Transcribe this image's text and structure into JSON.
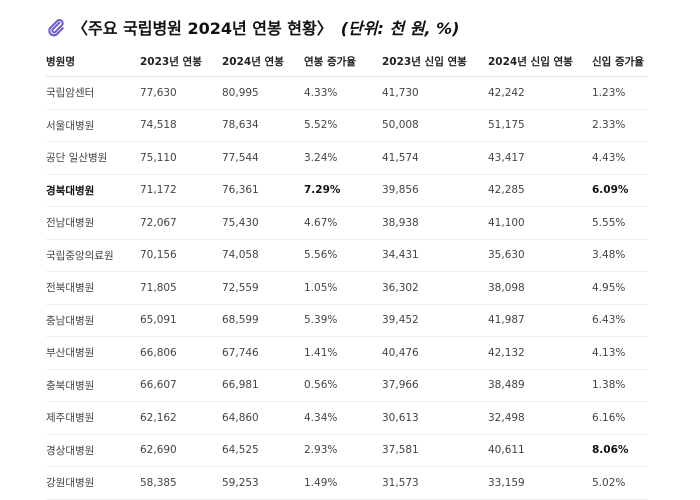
{
  "title": {
    "main": "〈주요 국립병원 2024년 연봉 현황〉",
    "unit": "(단위: 천 원, %)"
  },
  "headers": [
    "병원명",
    "2023년 연봉",
    "2024년 연봉",
    "연봉 증가율",
    "2023년 신입 연봉",
    "2024년 신입 연봉",
    "신입 증가율"
  ],
  "rows": [
    {
      "cells": [
        "국립암센터",
        "77,630",
        "80,995",
        "4.33%",
        "41,730",
        "42,242",
        "1.23%"
      ],
      "bold": []
    },
    {
      "cells": [
        "서울대병원",
        "74,518",
        "78,634",
        "5.52%",
        "50,008",
        "51,175",
        "2.33%"
      ],
      "bold": []
    },
    {
      "cells": [
        "공단 일산병원",
        "75,110",
        "77,544",
        "3.24%",
        "41,574",
        "43,417",
        "4.43%"
      ],
      "bold": []
    },
    {
      "cells": [
        "경북대병원",
        "71,172",
        "76,361",
        "7.29%",
        "39,856",
        "42,285",
        "6.09%"
      ],
      "bold": [
        0,
        3,
        6
      ]
    },
    {
      "cells": [
        "전남대병원",
        "72,067",
        "75,430",
        "4.67%",
        "38,938",
        "41,100",
        "5.55%"
      ],
      "bold": []
    },
    {
      "cells": [
        "국립중앙의료원",
        "70,156",
        "74,058",
        "5.56%",
        "34,431",
        "35,630",
        "3.48%"
      ],
      "bold": []
    },
    {
      "cells": [
        "전북대병원",
        "71,805",
        "72,559",
        "1.05%",
        "36,302",
        "38,098",
        "4.95%"
      ],
      "bold": []
    },
    {
      "cells": [
        "충남대병원",
        "65,091",
        "68,599",
        "5.39%",
        "39,452",
        "41,987",
        "6.43%"
      ],
      "bold": []
    },
    {
      "cells": [
        "부산대병원",
        "66,806",
        "67,746",
        "1.41%",
        "40,476",
        "42,132",
        "4.13%"
      ],
      "bold": []
    },
    {
      "cells": [
        "충북대병원",
        "66,607",
        "66,981",
        "0.56%",
        "37,966",
        "38,489",
        "1.38%"
      ],
      "bold": []
    },
    {
      "cells": [
        "제주대병원",
        "62,162",
        "64,860",
        "4.34%",
        "30,613",
        "32,498",
        "6.16%"
      ],
      "bold": []
    },
    {
      "cells": [
        "경상대병원",
        "62,690",
        "64,525",
        "2.93%",
        "37,581",
        "40,611",
        "8.06%"
      ],
      "bold": [
        6
      ]
    },
    {
      "cells": [
        "강원대병원",
        "58,385",
        "59,253",
        "1.49%",
        "31,573",
        "33,159",
        "5.02%"
      ],
      "bold": []
    }
  ]
}
